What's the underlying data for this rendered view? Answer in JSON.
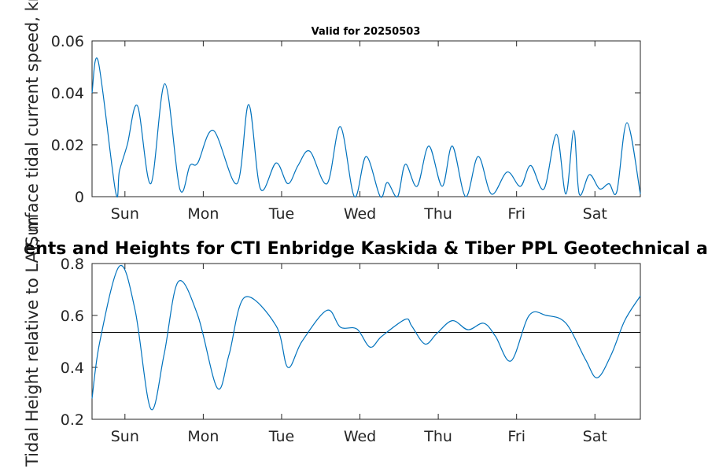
{
  "chart_data": [
    {
      "type": "line",
      "title": "Valid for 20250503",
      "ylabel": "Surface tidal current speed, kn",
      "xlim": [
        0,
        7
      ],
      "ylim": [
        0,
        0.06
      ],
      "yticks": [
        "0",
        "0.02",
        "0.04",
        "0.06"
      ],
      "xticks": [
        "Sun",
        "Mon",
        "Tue",
        "Wed",
        "Thu",
        "Fri",
        "Sat"
      ],
      "line_color": "#0072BD",
      "series": [
        {
          "x": [
            0.0,
            0.08,
            0.3,
            0.35,
            0.45,
            0.58,
            0.75,
            0.93,
            1.12,
            1.25,
            1.35,
            1.55,
            1.85,
            2.0,
            2.15,
            2.35,
            2.5,
            2.63,
            2.78,
            3.0,
            3.17,
            3.35,
            3.5,
            3.68,
            3.77,
            3.9,
            4.0,
            4.15,
            4.3,
            4.47,
            4.6,
            4.77,
            4.93,
            5.1,
            5.3,
            5.47,
            5.6,
            5.77,
            5.93,
            6.05,
            6.15,
            6.22,
            6.35,
            6.48,
            6.6,
            6.7,
            6.83,
            7.0
          ],
          "values": [
            0.04,
            0.052,
            0.002,
            0.01,
            0.02,
            0.035,
            0.005,
            0.0435,
            0.003,
            0.012,
            0.013,
            0.0255,
            0.005,
            0.0355,
            0.003,
            0.013,
            0.005,
            0.012,
            0.0175,
            0.005,
            0.027,
            0.0,
            0.0155,
            0.0,
            0.0055,
            0.0,
            0.0125,
            0.004,
            0.0195,
            0.004,
            0.0195,
            0.0,
            0.0155,
            0.001,
            0.0095,
            0.004,
            0.012,
            0.003,
            0.024,
            0.001,
            0.0255,
            0.001,
            0.0085,
            0.003,
            0.005,
            0.002,
            0.0285,
            0.001
          ]
        }
      ]
    },
    {
      "type": "line",
      "title": "ents and Heights for CTI Enbridge  Kaskida & Tiber PPL Geotechnical a",
      "ylabel": "Tidal Height relative to LAT, m",
      "xlim": [
        0,
        7
      ],
      "ylim": [
        0.2,
        0.8
      ],
      "yticks": [
        "0.2",
        "0.4",
        "0.6",
        "0.8"
      ],
      "xticks": [
        "Sun",
        "Mon",
        "Tue",
        "Wed",
        "Thu",
        "Fri",
        "Sat"
      ],
      "reference_line": 0.535,
      "line_color": "#0072BD",
      "series": [
        {
          "x": [
            0.0,
            0.1,
            0.35,
            0.55,
            0.75,
            0.92,
            1.1,
            1.35,
            1.6,
            1.75,
            1.95,
            2.35,
            2.5,
            2.68,
            3.0,
            3.17,
            3.38,
            3.55,
            3.7,
            4.0,
            4.08,
            4.25,
            4.4,
            4.6,
            4.8,
            5.0,
            5.15,
            5.35,
            5.58,
            5.8,
            6.05,
            6.3,
            6.45,
            6.63,
            6.8,
            7.0
          ],
          "values": [
            0.28,
            0.5,
            0.79,
            0.62,
            0.24,
            0.45,
            0.73,
            0.6,
            0.32,
            0.45,
            0.67,
            0.56,
            0.4,
            0.5,
            0.62,
            0.555,
            0.548,
            0.478,
            0.52,
            0.585,
            0.56,
            0.49,
            0.53,
            0.58,
            0.545,
            0.57,
            0.52,
            0.425,
            0.6,
            0.6,
            0.57,
            0.43,
            0.36,
            0.45,
            0.58,
            0.675
          ]
        }
      ]
    }
  ]
}
